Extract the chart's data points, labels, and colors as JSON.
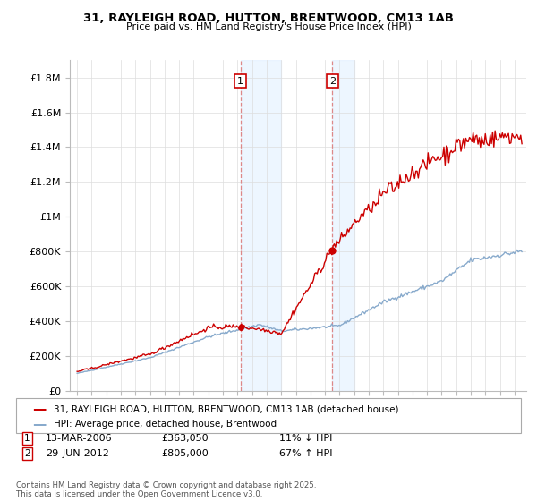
{
  "title": "31, RAYLEIGH ROAD, HUTTON, BRENTWOOD, CM13 1AB",
  "subtitle": "Price paid vs. HM Land Registry's House Price Index (HPI)",
  "ylabel_ticks": [
    "£0",
    "£200K",
    "£400K",
    "£600K",
    "£800K",
    "£1M",
    "£1.2M",
    "£1.4M",
    "£1.6M",
    "£1.8M"
  ],
  "ytick_values": [
    0,
    200000,
    400000,
    600000,
    800000,
    1000000,
    1200000,
    1400000,
    1600000,
    1800000
  ],
  "ylim": [
    0,
    1900000
  ],
  "xlim_start": 1994.5,
  "xlim_end": 2025.8,
  "transaction1_x": 2006.2,
  "transaction1_y": 363050,
  "transaction2_x": 2012.5,
  "transaction2_y": 805000,
  "line_color_property": "#cc0000",
  "line_color_hpi": "#88aacc",
  "shade_color": "#ddeeff",
  "dashed_color": "#dd8888",
  "copyright_text": "Contains HM Land Registry data © Crown copyright and database right 2025.\nThis data is licensed under the Open Government Licence v3.0.",
  "legend_property": "31, RAYLEIGH ROAD, HUTTON, BRENTWOOD, CM13 1AB (detached house)",
  "legend_hpi": "HPI: Average price, detached house, Brentwood",
  "transaction1_date": "13-MAR-2006",
  "transaction1_price": "£363,050",
  "transaction1_hpi": "11% ↓ HPI",
  "transaction2_date": "29-JUN-2012",
  "transaction2_price": "£805,000",
  "transaction2_hpi": "67% ↑ HPI"
}
